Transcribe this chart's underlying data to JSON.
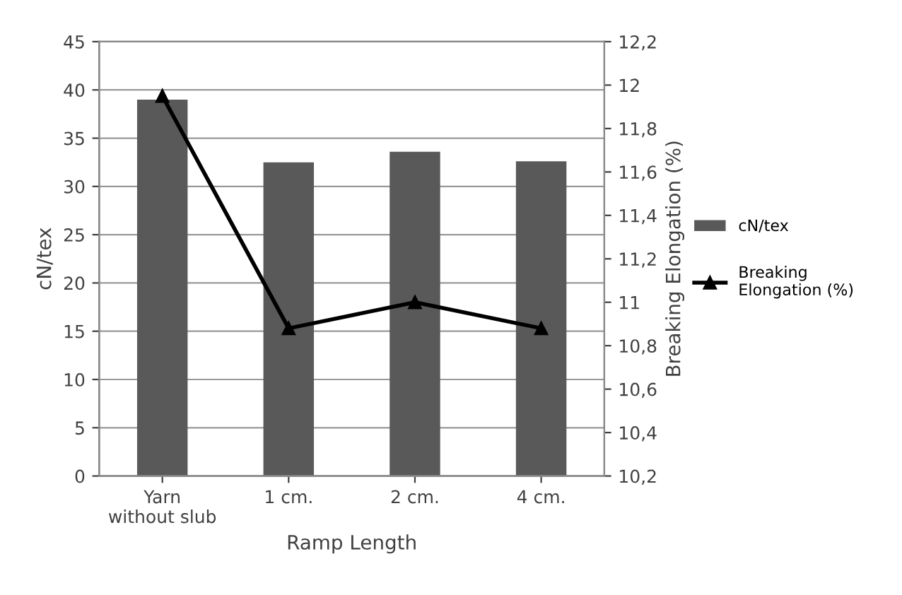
{
  "chart_data": {
    "type": "bar",
    "xlabel": "Ramp Length",
    "ylabel": "cN/tex",
    "y2label": "Breaking Elongation (%)",
    "categories": [
      "Yarn\nwithout slub",
      "1 cm.",
      "2 cm.",
      "4 cm."
    ],
    "series": [
      {
        "name": "cN/tex",
        "color": "#595959",
        "values": [
          39,
          32.5,
          33.6,
          32.6
        ]
      },
      {
        "name": "Breaking\nElongation (%)",
        "type": "line",
        "axis": "y2",
        "color": "#000000",
        "marker": "triangle",
        "values": [
          11.95,
          10.88,
          11.0,
          10.88
        ]
      }
    ],
    "ylim": [
      0,
      45
    ],
    "yticks": [
      0,
      5,
      10,
      15,
      20,
      25,
      30,
      35,
      40,
      45
    ],
    "y2lim": [
      10.2,
      12.2
    ],
    "y2ticks": [
      {
        "value": 10.2,
        "label": "10,2"
      },
      {
        "value": 10.4,
        "label": "10,4"
      },
      {
        "value": 10.6,
        "label": "10,6"
      },
      {
        "value": 10.8,
        "label": "10,8"
      },
      {
        "value": 11,
        "label": "11"
      },
      {
        "value": 11.2,
        "label": "11,2"
      },
      {
        "value": 11.4,
        "label": "11,4"
      },
      {
        "value": 11.6,
        "label": "11,6"
      },
      {
        "value": 11.8,
        "label": "11,8"
      },
      {
        "value": 12,
        "label": "12"
      },
      {
        "value": 12.2,
        "label": "12,2"
      }
    ],
    "grid": "y",
    "legend": "right"
  }
}
